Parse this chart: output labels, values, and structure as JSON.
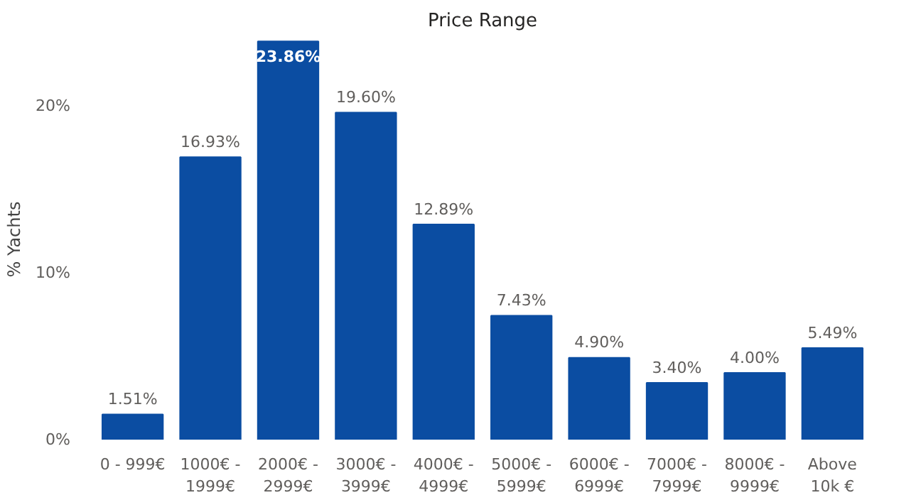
{
  "chart_data": {
    "type": "bar",
    "title": "Price Range",
    "ylabel": "% Yachts",
    "categories": [
      "0 - 999€",
      "1000€ -\n1999€",
      "2000€ -\n2999€",
      "3000€ -\n3999€",
      "4000€ -\n4999€",
      "5000€ -\n5999€",
      "6000€ -\n6999€",
      "7000€ -\n7999€",
      "8000€ -\n9999€",
      "Above\n10k €"
    ],
    "values": [
      1.51,
      16.93,
      23.86,
      19.6,
      12.89,
      7.43,
      4.9,
      3.4,
      4.0,
      5.49
    ],
    "value_labels": [
      "1.51%",
      "16.93%",
      "23.86%",
      "19.60%",
      "12.89%",
      "7.43%",
      "4.90%",
      "3.40%",
      "4.00%",
      "5.49%"
    ],
    "color": "#0b4da2",
    "ylim": [
      0,
      24
    ],
    "yticks": [
      {
        "value": 0,
        "label": "0%"
      },
      {
        "value": 10,
        "label": "10%"
      },
      {
        "value": 20,
        "label": "20%"
      }
    ],
    "grid": false
  }
}
